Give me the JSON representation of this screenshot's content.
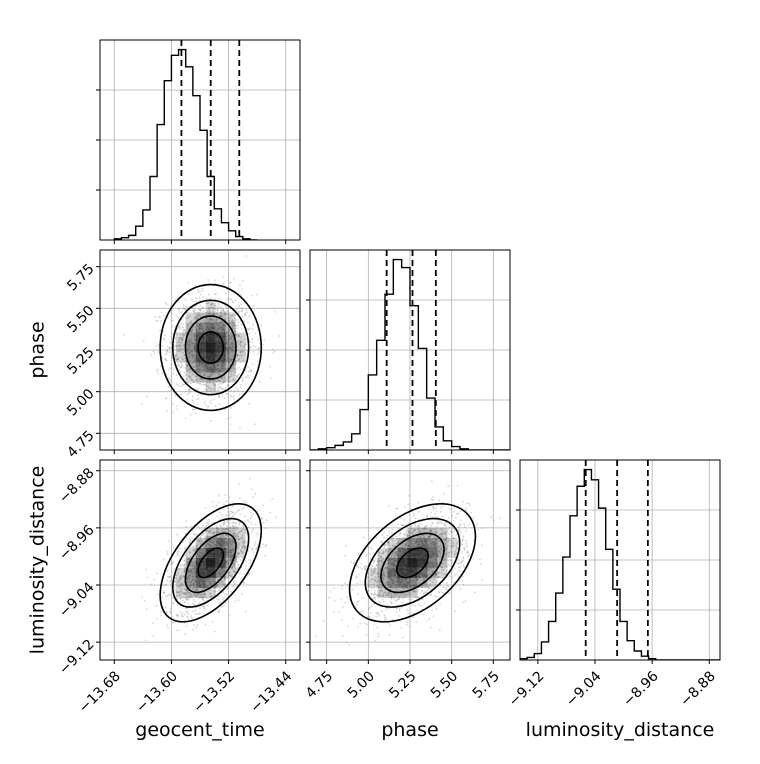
{
  "chart_data": {
    "type": "corner",
    "parameters": [
      "geocent_time",
      "phase",
      "luminosity_distance"
    ],
    "axis_labels": {
      "geocent_time": "geocent_time",
      "phase": "phase",
      "luminosity_distance": "luminosity_distance"
    },
    "ranges": {
      "geocent_time": [
        -13.7,
        -13.42
      ],
      "phase": [
        4.65,
        5.85
      ],
      "luminosity_distance": [
        -9.145,
        -8.865
      ]
    },
    "ticks": {
      "geocent_time": [
        -13.68,
        -13.6,
        -13.52,
        -13.44
      ],
      "phase": [
        4.75,
        5.0,
        5.25,
        5.5,
        5.75
      ],
      "luminosity_distance": [
        -9.12,
        -9.04,
        -8.96,
        -8.88
      ]
    },
    "tick_labels": {
      "geocent_time": [
        "−13.68",
        "−13.60",
        "−13.52",
        "−13.44"
      ],
      "phase": [
        "4.75",
        "5.00",
        "5.25",
        "5.50",
        "5.75"
      ],
      "luminosity_distance": [
        "−9.12",
        "−9.04",
        "−8.96",
        "−8.88"
      ]
    },
    "quantiles": {
      "geocent_time": [
        -13.586,
        -13.545,
        -13.505
      ],
      "phase": [
        5.11,
        5.265,
        5.405
      ],
      "luminosity_distance": [
        -9.053,
        -9.009,
        -8.966
      ]
    },
    "histograms": {
      "geocent_time": {
        "bin_start": -13.68,
        "bin_width": 0.01,
        "counts": [
          1,
          2,
          4,
          12,
          26,
          55,
          100,
          138,
          160,
          165,
          150,
          125,
          95,
          55,
          27,
          15,
          8,
          3,
          1,
          0
        ]
      },
      "phase": {
        "bin_start": 4.65,
        "bin_width": 0.05,
        "counts": [
          0,
          1,
          2,
          4,
          7,
          14,
          35,
          65,
          95,
          135,
          165,
          158,
          125,
          88,
          45,
          20,
          8,
          3,
          1,
          0,
          0,
          0,
          0,
          0
        ]
      },
      "luminosity_distance": {
        "bin_start": -9.145,
        "bin_width": 0.01,
        "counts": [
          1,
          2,
          5,
          14,
          30,
          52,
          80,
          112,
          135,
          148,
          140,
          118,
          86,
          55,
          30,
          15,
          7,
          3,
          1,
          0,
          0,
          0,
          0,
          0,
          0,
          0,
          0,
          0
        ]
      }
    },
    "samples_2d": {
      "center": {
        "geocent_time": -13.545,
        "phase": 5.265,
        "luminosity_distance": -9.009
      },
      "sigma": {
        "geocent_time": 0.03,
        "phase": 0.16,
        "luminosity_distance": 0.035
      },
      "correlation": {
        "geocent_time|phase": 0.0,
        "geocent_time|luminosity_distance": 0.55,
        "phase|luminosity_distance": 0.45
      }
    },
    "contour_levels_sigma": [
      0.5,
      1.0,
      1.5,
      2.0
    ],
    "grid": true
  }
}
